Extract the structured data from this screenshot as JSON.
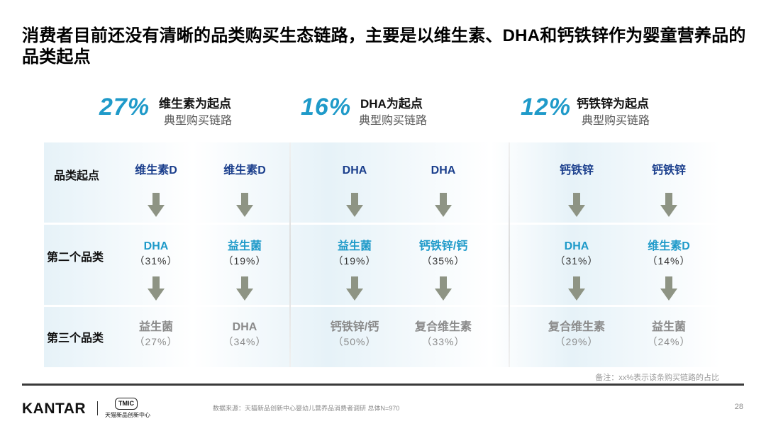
{
  "title": "消费者目前还没有清晰的品类购买生态链路，主要是以维生素、DHA和钙铁锌作为婴童营养品的品类起点",
  "headers": [
    {
      "pct": "27%",
      "title": "维生素为起点",
      "sub": "典型购买链路"
    },
    {
      "pct": "16%",
      "title": "DHA为起点",
      "sub": "典型购买链路"
    },
    {
      "pct": "12%",
      "title": "钙铁锌为起点",
      "sub": "典型购买链路"
    }
  ],
  "row_labels": [
    "品类起点",
    "第二个品类",
    "第三个品类"
  ],
  "start": [
    "维生素D",
    "维生素D",
    "DHA",
    "DHA",
    "钙铁锌",
    "钙铁锌"
  ],
  "second": [
    {
      "name": "DHA",
      "pct": "（31%）"
    },
    {
      "name": "益生菌",
      "pct": "（19%）"
    },
    {
      "name": "益生菌",
      "pct": "（19%）"
    },
    {
      "name": "钙铁锌/钙",
      "pct": "（35%）"
    },
    {
      "name": "DHA",
      "pct": "（31%）"
    },
    {
      "name": "维生素D",
      "pct": "（14%）"
    }
  ],
  "third": [
    {
      "name": "益生菌",
      "pct": "（27%）"
    },
    {
      "name": "DHA",
      "pct": "（34%）"
    },
    {
      "name": "钙铁锌/钙",
      "pct": "（50%）"
    },
    {
      "name": "复合维生素",
      "pct": "（33%）"
    },
    {
      "name": "复合维生素",
      "pct": "（29%）"
    },
    {
      "name": "益生菌",
      "pct": "（24%）"
    }
  ],
  "note": "备注：xx%表示该条购买链路的占比",
  "footer": {
    "logo": "KANTAR",
    "tmic_badge": "TMIC",
    "tmic_name": "天猫新品创新中心",
    "source": "数据来源：天猫新品创新中心婴幼儿营养品消费者调研  总体N=970",
    "page": "28"
  },
  "colors": {
    "accent": "#1f9ac9",
    "start": "#1a3e8c",
    "arrow": "#8e9484",
    "muted": "#8a8a8a"
  },
  "icons": {
    "arrow": "down-arrow-icon"
  }
}
